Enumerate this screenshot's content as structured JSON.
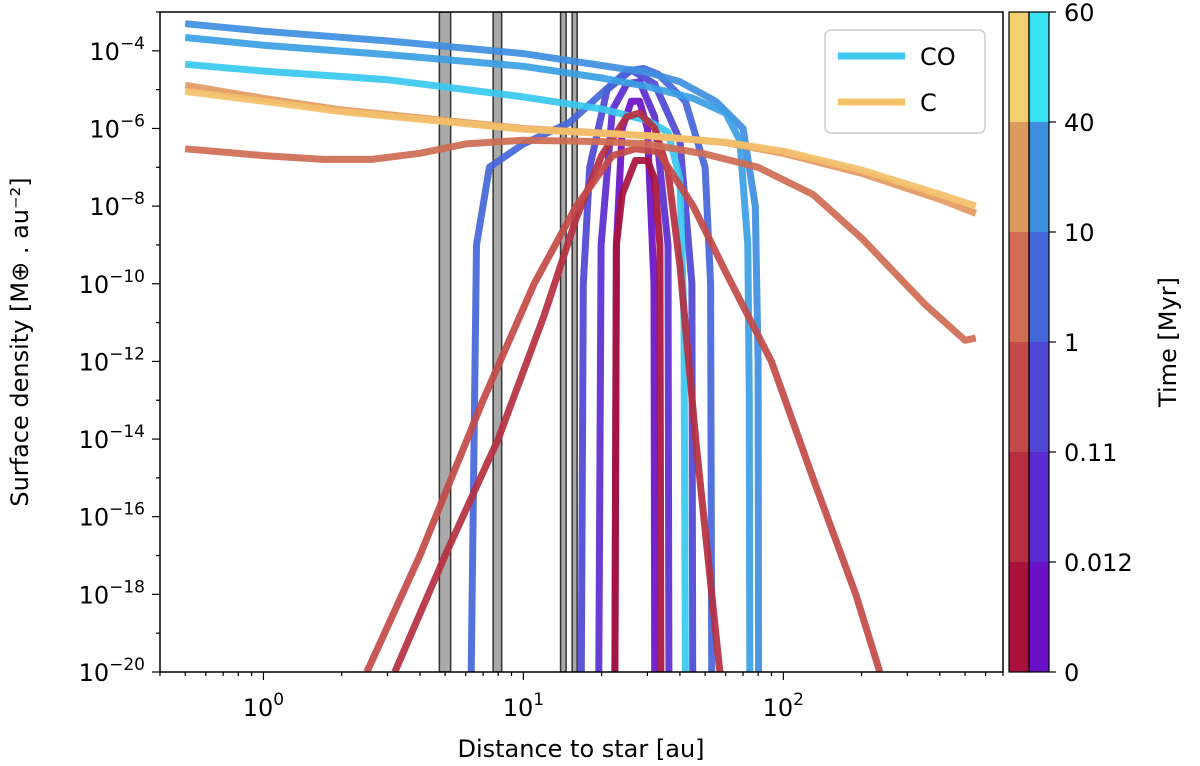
{
  "chart_data": {
    "type": "line",
    "xscale": "log",
    "yscale": "log",
    "xlabel": "Distance to star [au]",
    "ylabel": "Surface density [M⊕ . au⁻²]",
    "xlim": [
      0.4,
      700
    ],
    "ylim": [
      1e-20,
      0.001
    ],
    "x_ticks": [
      {
        "value": 1,
        "base": "10",
        "exp": "0"
      },
      {
        "value": 10,
        "base": "10",
        "exp": "1"
      },
      {
        "value": 100,
        "base": "10",
        "exp": "2"
      }
    ],
    "y_ticks": [
      {
        "value": 0.0001,
        "base": "10",
        "exp": "−4"
      },
      {
        "value": 1e-06,
        "base": "10",
        "exp": "−6"
      },
      {
        "value": 1e-08,
        "base": "10",
        "exp": "−8"
      },
      {
        "value": 1e-10,
        "base": "10",
        "exp": "−10"
      },
      {
        "value": 1e-12,
        "base": "10",
        "exp": "−12"
      },
      {
        "value": 1e-14,
        "base": "10",
        "exp": "−14"
      },
      {
        "value": 1e-16,
        "base": "10",
        "exp": "−16"
      },
      {
        "value": 1e-18,
        "base": "10",
        "exp": "−18"
      },
      {
        "value": 1e-20,
        "base": "10",
        "exp": "−20"
      }
    ],
    "vertical_bands": [
      [
        4.75,
        5.25
      ],
      [
        7.65,
        8.25
      ],
      [
        13.9,
        14.6
      ],
      [
        15.4,
        16.1
      ]
    ],
    "legend": [
      {
        "label": "CO",
        "color": "#3fcbef"
      },
      {
        "label": "C",
        "color": "#f4c06a"
      }
    ],
    "colorbar": {
      "label": "Time [Myr]",
      "tick_labels": [
        "0",
        "0.012",
        "0.11",
        "1",
        "10",
        "40",
        "60"
      ],
      "co_colors": [
        "#6a10c8",
        "#5a2cd0",
        "#4f46d4",
        "#4566d9",
        "#3f8ee0",
        "#38e2f0"
      ],
      "c_colors": [
        "#a8123a",
        "#b52f40",
        "#c24a48",
        "#cf6c52",
        "#dc9a5e",
        "#f2d070"
      ]
    },
    "series": [
      {
        "name": "CO t=0.012",
        "color": "#6a10c8",
        "points": [
          [
            22.5,
            1e-20
          ],
          [
            22.8,
            1e-09
          ],
          [
            24,
            1e-06
          ],
          [
            26,
            5e-06
          ],
          [
            28,
            5e-06
          ],
          [
            30,
            1e-06
          ],
          [
            31.8,
            1e-10
          ],
          [
            32,
            1e-20
          ]
        ]
      },
      {
        "name": "CO t=0.11",
        "color": "#5a2cd0",
        "points": [
          [
            19.5,
            1e-20
          ],
          [
            19.9,
            1e-09
          ],
          [
            22,
            3e-06
          ],
          [
            25,
            1.4e-05
          ],
          [
            28,
            1.6e-05
          ],
          [
            32,
            2e-06
          ],
          [
            36,
            1e-09
          ],
          [
            36.3,
            1e-20
          ]
        ]
      },
      {
        "name": "CO t=1",
        "color": "#4f46d4",
        "points": [
          [
            16.7,
            1e-20
          ],
          [
            17,
            1e-10
          ],
          [
            18,
            1e-07
          ],
          [
            21,
            1e-05
          ],
          [
            26,
            3.2e-05
          ],
          [
            32,
            1.4e-05
          ],
          [
            40,
            5e-07
          ],
          [
            44.5,
            1e-10
          ],
          [
            44.8,
            1e-20
          ]
        ]
      },
      {
        "name": "CO t=10",
        "color": "#4566d9",
        "points": [
          [
            6.3,
            1e-20
          ],
          [
            6.6,
            1e-09
          ],
          [
            7.4,
            1e-07
          ],
          [
            10,
            4e-07
          ],
          [
            15,
            1.4e-06
          ],
          [
            20,
            8e-06
          ],
          [
            25,
            3e-05
          ],
          [
            29,
            3.5e-05
          ],
          [
            33,
            2.5e-05
          ],
          [
            42,
            5e-06
          ],
          [
            50,
            1e-07
          ],
          [
            52.5,
            1e-10
          ],
          [
            53,
            1e-20
          ]
        ]
      },
      {
        "name": "CO t=40 a",
        "color": "#3f8ee0",
        "points": [
          [
            0.5,
            0.0005
          ],
          [
            1,
            0.00032
          ],
          [
            3,
            0.00018
          ],
          [
            10,
            8.5e-05
          ],
          [
            20,
            4.2e-05
          ],
          [
            30,
            2.8e-05
          ],
          [
            40,
            1.6e-05
          ],
          [
            55,
            5e-06
          ],
          [
            70,
            1e-06
          ],
          [
            78,
            1e-08
          ],
          [
            80,
            1e-12
          ],
          [
            80.3,
            1e-20
          ]
        ]
      },
      {
        "name": "CO t=40 b",
        "color": "#3a9fe4",
        "points": [
          [
            0.5,
            0.00022
          ],
          [
            1,
            0.00014
          ],
          [
            3,
            8e-05
          ],
          [
            10,
            4e-05
          ],
          [
            20,
            2e-05
          ],
          [
            30,
            1.2e-05
          ],
          [
            45,
            6e-06
          ],
          [
            60,
            2.5e-06
          ],
          [
            68,
            5e-07
          ],
          [
            73,
            1e-09
          ],
          [
            74,
            1e-13
          ],
          [
            74.3,
            1e-20
          ]
        ]
      },
      {
        "name": "CO t=60",
        "color": "#38c8ee",
        "points": [
          [
            0.5,
            4.5e-05
          ],
          [
            1,
            3e-05
          ],
          [
            3,
            1.8e-05
          ],
          [
            10,
            6.5e-06
          ],
          [
            20,
            3.2e-06
          ],
          [
            30,
            1.6e-06
          ],
          [
            36,
            8e-07
          ],
          [
            40,
            5e-08
          ],
          [
            41.5,
            1e-11
          ],
          [
            42,
            1e-20
          ]
        ]
      },
      {
        "name": "C t=0.012",
        "color": "#a8123a",
        "points": [
          [
            22.5,
            1e-20
          ],
          [
            22.8,
            1e-09
          ],
          [
            24,
            2e-08
          ],
          [
            27,
            1.5e-07
          ],
          [
            30,
            1.5e-07
          ],
          [
            32,
            5e-08
          ],
          [
            33.5,
            1e-09
          ],
          [
            33.8,
            1e-20
          ]
        ]
      },
      {
        "name": "C t=0.11",
        "color": "#b52f40",
        "points": [
          [
            3.2,
            1e-20
          ],
          [
            5,
            1e-17
          ],
          [
            8,
            1e-14
          ],
          [
            12,
            1.5e-11
          ],
          [
            16,
            5e-09
          ],
          [
            20,
            2e-07
          ],
          [
            25,
            2e-06
          ],
          [
            28,
            2.5e-06
          ],
          [
            32,
            1e-06
          ],
          [
            36,
            8e-08
          ],
          [
            40,
            3e-10
          ],
          [
            46,
            1e-14
          ],
          [
            55,
            1e-19
          ],
          [
            57,
            1e-20
          ]
        ]
      },
      {
        "name": "C t=1",
        "color": "#c24a48",
        "points": [
          [
            2.5,
            1e-20
          ],
          [
            4,
            1e-17
          ],
          [
            7,
            1e-13
          ],
          [
            11,
            1e-10
          ],
          [
            16,
            1e-08
          ],
          [
            22,
            2e-07
          ],
          [
            27,
            3e-07
          ],
          [
            33,
            2.5e-07
          ],
          [
            45,
            1e-08
          ],
          [
            60,
            2e-10
          ],
          [
            90,
            1e-12
          ],
          [
            130,
            1e-15
          ],
          [
            190,
            1e-18
          ],
          [
            235,
            1e-20
          ]
        ]
      },
      {
        "name": "C t=10",
        "color": "#cf6c52",
        "points": [
          [
            0.5,
            3e-07
          ],
          [
            1,
            2e-07
          ],
          [
            1.7,
            1.6e-07
          ],
          [
            2.6,
            1.6e-07
          ],
          [
            4,
            2.3e-07
          ],
          [
            6,
            4e-07
          ],
          [
            10,
            5e-07
          ],
          [
            20,
            4.6e-07
          ],
          [
            30,
            4e-07
          ],
          [
            50,
            2.2e-07
          ],
          [
            80,
            1e-07
          ],
          [
            130,
            2e-08
          ],
          [
            200,
            1.5e-09
          ],
          [
            350,
            3e-11
          ],
          [
            500,
            3.5e-12
          ],
          [
            550,
            4e-12
          ]
        ]
      },
      {
        "name": "C t=40",
        "color": "#e49a62",
        "points": [
          [
            0.5,
            1.3e-05
          ],
          [
            1,
            6e-06
          ],
          [
            2,
            3e-06
          ],
          [
            5,
            1.6e-06
          ],
          [
            10,
            1e-06
          ],
          [
            30,
            6.5e-07
          ],
          [
            60,
            4.3e-07
          ],
          [
            100,
            2.3e-07
          ],
          [
            200,
            7e-08
          ],
          [
            400,
            1.5e-08
          ],
          [
            550,
            6.5e-09
          ]
        ]
      },
      {
        "name": "C t=60",
        "color": "#f4c06a",
        "points": [
          [
            0.5,
            9e-06
          ],
          [
            1,
            5e-06
          ],
          [
            2,
            2.7e-06
          ],
          [
            5,
            1.5e-06
          ],
          [
            10,
            9.5e-07
          ],
          [
            30,
            6.5e-07
          ],
          [
            60,
            4.4e-07
          ],
          [
            100,
            2.6e-07
          ],
          [
            200,
            8.5e-08
          ],
          [
            400,
            2e-08
          ],
          [
            550,
            1e-08
          ]
        ]
      }
    ]
  }
}
